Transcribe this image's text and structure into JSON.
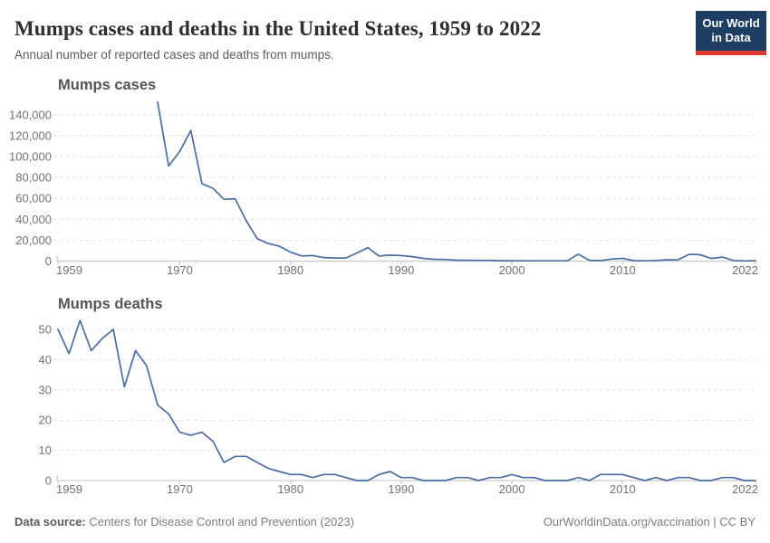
{
  "header": {
    "title": "Mumps cases and deaths in the United States, 1959 to 2022",
    "subtitle": "Annual number of reported cases and deaths from mumps.",
    "logo": {
      "line1": "Our World",
      "line2": "in Data",
      "bg_color": "#1d3d63",
      "bar_color": "#dc3b2e"
    }
  },
  "footer": {
    "source_label": "Data source:",
    "source_text": " Centers for Disease Control and Prevention (2023)",
    "right_text": "OurWorldinData.org/vaccination | CC BY"
  },
  "colors": {
    "line": "#4c6da4",
    "grid": "#dddddd",
    "axis": "#c9c9c9",
    "tick_text": "#737373"
  },
  "chart_data": [
    {
      "type": "line",
      "title": "Mumps cases",
      "x_domain": [
        1959,
        2022
      ],
      "x_ticks": [
        1959,
        1970,
        1980,
        1990,
        2000,
        2010,
        2022
      ],
      "ylim": [
        0,
        140000
      ],
      "y_ticks": [
        0,
        20000,
        40000,
        60000,
        80000,
        100000,
        120000,
        140000
      ],
      "y_tick_labels": [
        "0",
        "20,000",
        "40,000",
        "60,000",
        "80,000",
        "100,000",
        "120,000",
        "140,000"
      ],
      "grid": "dashed",
      "x_start": 1968,
      "x_step": 1,
      "values": [
        152209,
        90918,
        104953,
        124939,
        74215,
        69612,
        59128,
        59647,
        38492,
        21436,
        16817,
        14225,
        8576,
        4941,
        5270,
        3355,
        3021,
        2982,
        7790,
        12848,
        4866,
        5712,
        5292,
        4264,
        2572,
        1692,
        1537,
        906,
        751,
        683,
        666,
        387,
        338,
        266,
        270,
        231,
        258,
        314,
        6584,
        800,
        454,
        1991,
        2612,
        404,
        229,
        584,
        1223,
        1329,
        6369,
        6109,
        2515,
        3780,
        616,
        139,
        322
      ]
    },
    {
      "type": "line",
      "title": "Mumps deaths",
      "x_domain": [
        1959,
        2022
      ],
      "x_ticks": [
        1959,
        1970,
        1980,
        1990,
        2000,
        2010,
        2022
      ],
      "ylim": [
        0,
        50
      ],
      "y_ticks": [
        0,
        10,
        20,
        30,
        40,
        50
      ],
      "y_tick_labels": [
        "0",
        "10",
        "20",
        "30",
        "40",
        "50"
      ],
      "grid": "dashed",
      "x_start": 1959,
      "x_step": 1,
      "values": [
        50,
        42,
        53,
        43,
        47,
        50,
        31,
        43,
        38,
        25,
        22,
        16,
        15,
        16,
        13,
        6,
        8,
        8,
        6,
        4,
        3,
        2,
        2,
        1,
        2,
        2,
        1,
        0,
        0,
        2,
        3,
        1,
        1,
        0,
        0,
        0,
        1,
        1,
        0,
        1,
        1,
        2,
        1,
        1,
        0,
        0,
        0,
        1,
        0,
        2,
        2,
        2,
        1,
        0,
        1,
        0,
        1,
        1,
        0,
        0,
        1,
        1,
        0,
        0
      ]
    }
  ]
}
